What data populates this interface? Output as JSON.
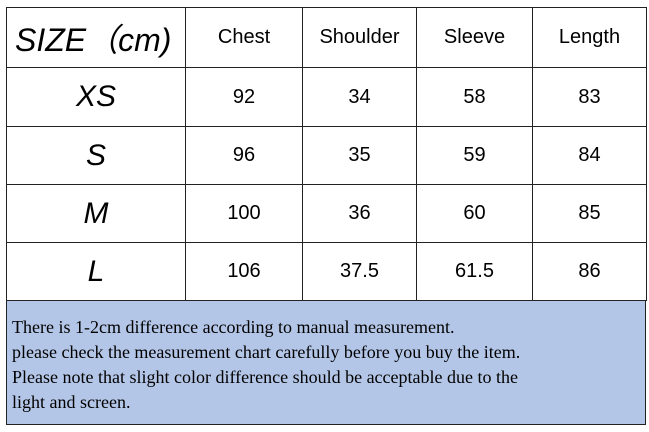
{
  "table": {
    "header": [
      "SIZE（cm)",
      "Chest",
      "Shoulder",
      "Sleeve",
      "Length"
    ],
    "rows": [
      [
        "XS",
        92,
        34,
        58,
        83
      ],
      [
        "S",
        96,
        35,
        59,
        84
      ],
      [
        "M",
        100,
        36,
        60,
        85
      ],
      [
        "L",
        106,
        37.5,
        61.5,
        86
      ]
    ]
  },
  "note": {
    "lines": [
      "There is 1-2cm difference according to manual measurement.",
      "please check the measurement chart carefully before you buy the item.",
      "Please note that slight color difference should be acceptable due to the",
      "light and screen."
    ]
  }
}
